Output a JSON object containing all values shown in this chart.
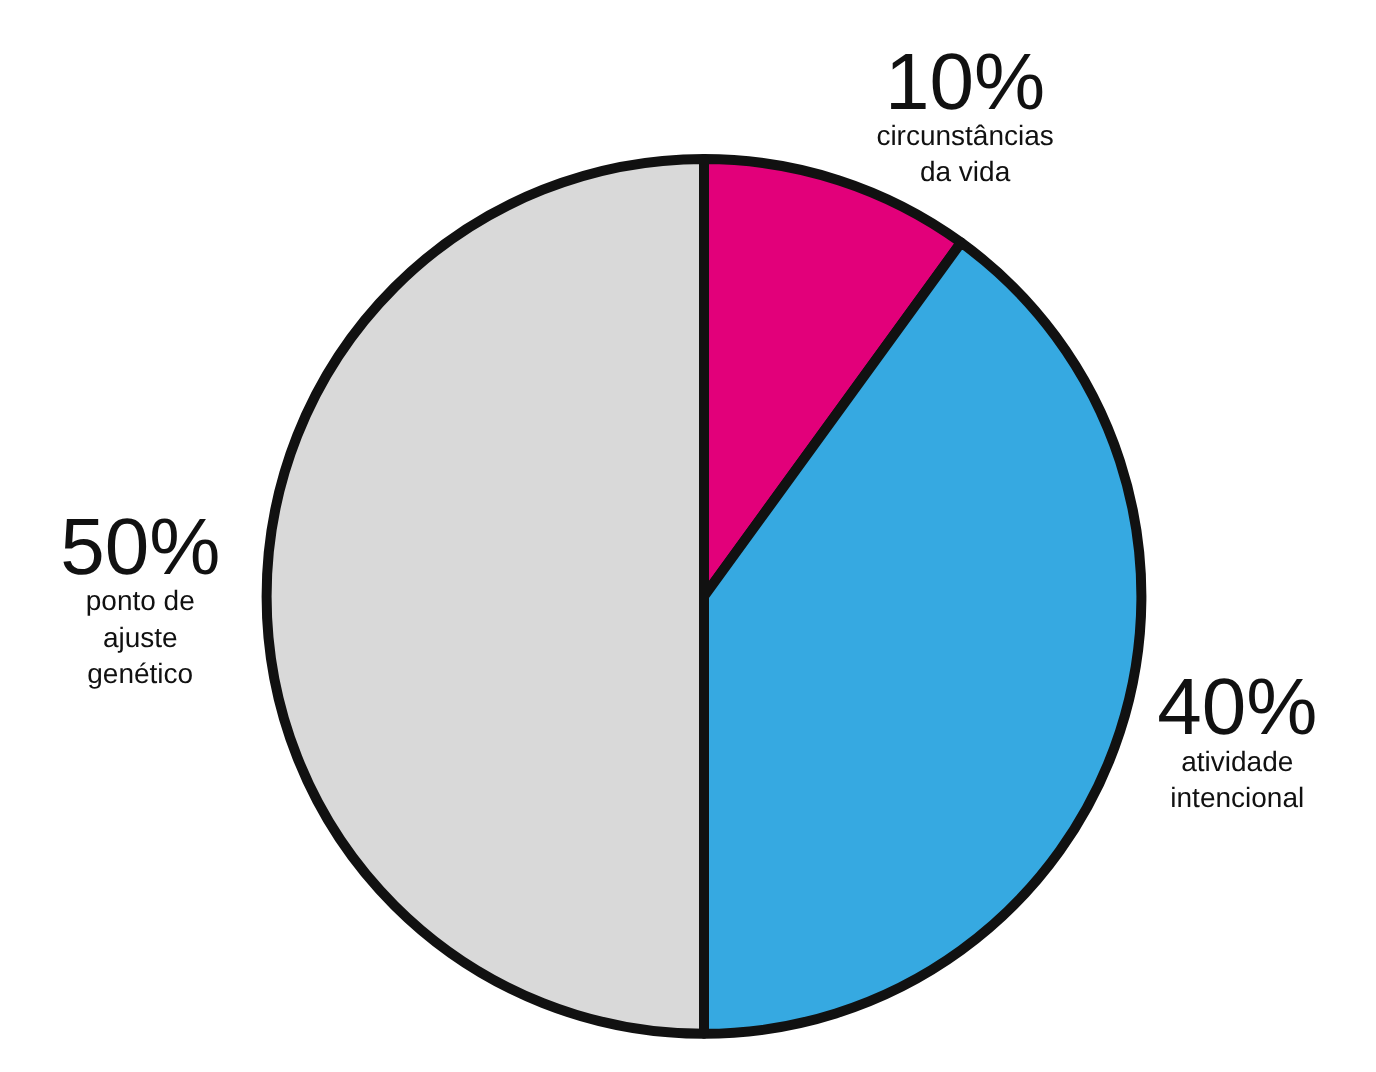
{
  "chart_data": {
    "type": "pie",
    "categories": [
      "circunstâncias\nda vida",
      "atividade\nintencional",
      "ponto de\najuste\ngenético"
    ],
    "values": [
      10,
      40,
      50
    ],
    "value_labels": [
      "10%",
      "40%",
      "50%"
    ],
    "colors": [
      "#e2007a",
      "#36a9e1",
      "#d9d9d9"
    ]
  }
}
